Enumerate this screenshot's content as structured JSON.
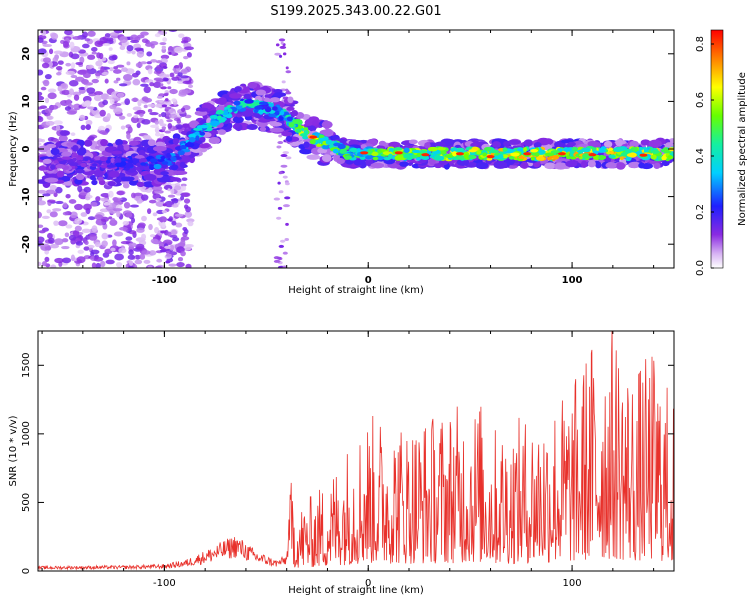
{
  "title": "S199.2025.343.00.22.G01",
  "chart_data": [
    {
      "type": "heatmap",
      "xlabel": "Height of straight line (km)",
      "ylabel": "Frequency (Hz)",
      "xlim": [
        -162,
        150
      ],
      "ylim": [
        -25,
        25
      ],
      "x_ticks": [
        -100,
        0,
        100
      ],
      "y_ticks": [
        -20,
        -10,
        0,
        10,
        20
      ],
      "ridge": {
        "x": [
          -160,
          -130,
          -105,
          -95,
          -85,
          -75,
          -65,
          -55,
          -45,
          -38,
          -30,
          -20,
          -10,
          0,
          50,
          100,
          150
        ],
        "y": [
          -3,
          -3,
          -3,
          -2,
          3,
          6,
          9,
          9,
          8,
          6,
          3,
          1,
          -1,
          -1,
          -1,
          -1,
          -1
        ],
        "amplitude": [
          0.15,
          0.2,
          0.3,
          0.35,
          0.4,
          0.45,
          0.5,
          0.45,
          0.4,
          0.5,
          0.75,
          0.6,
          0.55,
          0.6,
          0.7,
          0.75,
          0.7
        ]
      },
      "colorbar": {
        "label": "Normalized spectral amplitude",
        "range": [
          0.0,
          0.85
        ],
        "ticks": [
          0.0,
          0.2,
          0.4,
          0.6,
          0.8
        ],
        "tick_labels": [
          "0.0",
          "0.2",
          "0.4",
          "0.6",
          "0.8"
        ]
      }
    },
    {
      "type": "line",
      "xlabel": "Height of straight line (km)",
      "ylabel": "SNR (10 * v/v)",
      "xlim": [
        -162,
        150
      ],
      "ylim": [
        0,
        1750
      ],
      "x_ticks": [
        -100,
        0,
        100
      ],
      "y_ticks": [
        0,
        500,
        1000,
        1500
      ],
      "color": "#e8312b",
      "envelope": {
        "x": [
          -162,
          -120,
          -100,
          -90,
          -80,
          -70,
          -65,
          -55,
          -45,
          -40,
          -38,
          -35,
          -30,
          -20,
          -10,
          0,
          20,
          40,
          55,
          60,
          80,
          100,
          110,
          120,
          130,
          140,
          150
        ],
        "y": [
          35,
          40,
          50,
          80,
          150,
          230,
          270,
          150,
          80,
          120,
          650,
          450,
          500,
          650,
          900,
          1100,
          1050,
          1150,
          1200,
          1000,
          1100,
          1300,
          1650,
          1750,
          1400,
          1550,
          1200
        ]
      }
    }
  ]
}
